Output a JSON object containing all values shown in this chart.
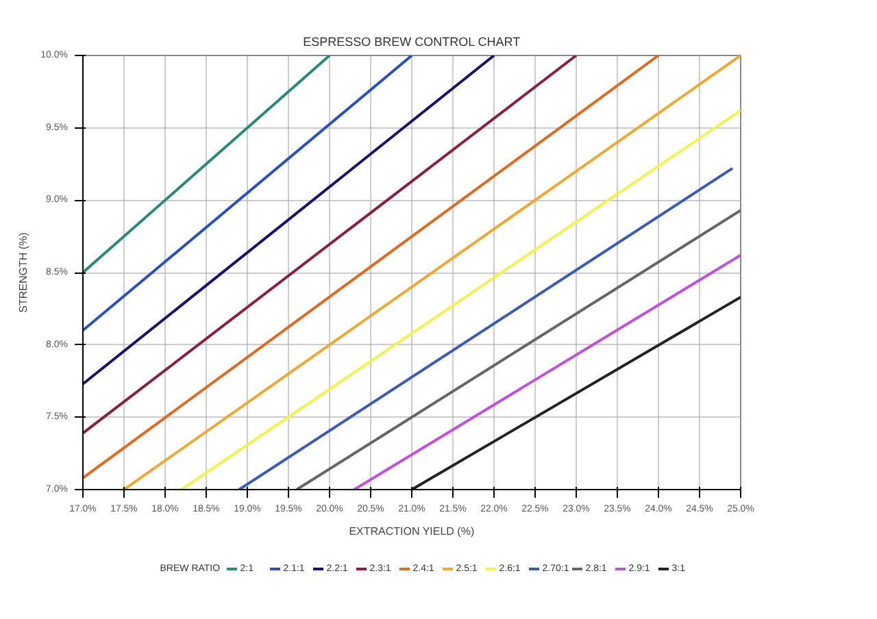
{
  "chart_data": {
    "type": "line",
    "title": "ESPRESSO BREW CONTROL CHART",
    "xlabel": "EXTRACTION YIELD (%)",
    "ylabel": "STRENGTH (%)",
    "legend_title": "BREW RATIO",
    "legend": "bottom",
    "grid": true,
    "marker": "none",
    "line_style": "solid",
    "xlim": [
      17,
      25
    ],
    "ylim": [
      7,
      10
    ],
    "xticks": [
      {
        "value": 17,
        "label": "17.0%"
      },
      {
        "value": 17.5,
        "label": "17.5%"
      },
      {
        "value": 18,
        "label": "18.0%"
      },
      {
        "value": 18.5,
        "label": "18.5%"
      },
      {
        "value": 19,
        "label": "19.0%"
      },
      {
        "value": 19.5,
        "label": "19.5%"
      },
      {
        "value": 20,
        "label": "20.0%"
      },
      {
        "value": 20.5,
        "label": "20.5%"
      },
      {
        "value": 21,
        "label": "21.0%"
      },
      {
        "value": 21.5,
        "label": "21.5%"
      },
      {
        "value": 22,
        "label": "22.0%"
      },
      {
        "value": 22.5,
        "label": "22.5%"
      },
      {
        "value": 23,
        "label": "23.0%"
      },
      {
        "value": 23.5,
        "label": "23.5%"
      },
      {
        "value": 24,
        "label": "24.0%"
      },
      {
        "value": 24.5,
        "label": "24.5%"
      },
      {
        "value": 25,
        "label": "25.0%"
      }
    ],
    "yticks": [
      {
        "value": 7,
        "label": "7.0%"
      },
      {
        "value": 7.5,
        "label": "7.5%"
      },
      {
        "value": 8,
        "label": "8.0%"
      },
      {
        "value": 8.5,
        "label": "8.5%"
      },
      {
        "value": 9,
        "label": "9.0%"
      },
      {
        "value": 9.5,
        "label": "9.5%"
      },
      {
        "value": 10,
        "label": "10.0%"
      }
    ],
    "series": [
      {
        "name": "2:1",
        "color": "#2a8a7a",
        "x": [
          17,
          20
        ],
        "values": [
          8.5,
          10
        ]
      },
      {
        "name": "2.1:1",
        "color": "#2a4fbf",
        "x": [
          17,
          21
        ],
        "values": [
          8.1,
          10
        ]
      },
      {
        "name": "2.2:1",
        "color": "#1a1070",
        "x": [
          17,
          22
        ],
        "values": [
          7.73,
          10
        ]
      },
      {
        "name": "2.3:1",
        "color": "#8a2040",
        "x": [
          17,
          23
        ],
        "values": [
          7.39,
          10
        ]
      },
      {
        "name": "2.4:1",
        "color": "#e06a20",
        "x": [
          17,
          24
        ],
        "values": [
          7.08,
          10
        ]
      },
      {
        "name": "2.5:1",
        "color": "#f0a830",
        "x": [
          17.5,
          25
        ],
        "values": [
          7,
          10
        ]
      },
      {
        "name": "2.6:1",
        "color": "#f2f250",
        "x": [
          18.2,
          25
        ],
        "values": [
          7,
          9.62
        ]
      },
      {
        "name": "2.70:1",
        "color": "#3a5cb8",
        "x": [
          18.9,
          24.9
        ],
        "values": [
          7,
          9.22
        ]
      },
      {
        "name": "2.8:1",
        "color": "#666666",
        "x": [
          19.6,
          25
        ],
        "values": [
          7,
          8.93
        ]
      },
      {
        "name": "2.9:1",
        "color": "#c050e0",
        "x": [
          20.3,
          25
        ],
        "values": [
          7,
          8.62
        ]
      },
      {
        "name": "3:1",
        "color": "#222222",
        "x": [
          21,
          25
        ],
        "values": [
          7,
          8.33
        ]
      }
    ]
  }
}
